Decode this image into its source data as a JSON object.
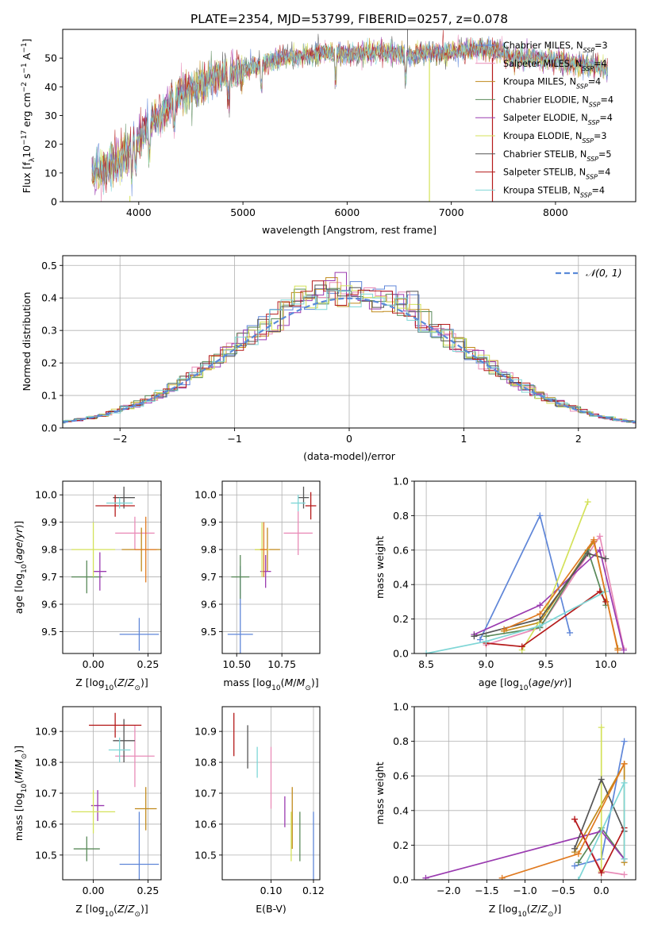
{
  "figure_title": "PLATE=2354, MJD=53799, FIBERID=0257, z=0.078",
  "model_colors": {
    "Chabrier MILES": "#5f86d8",
    "Salpeter MILES": "#e98cb8",
    "Kroupa MILES": "#c08a1c",
    "Chabrier ELODIE": "#5a8a5a",
    "Salpeter ELODIE": "#9a3bb0",
    "Kroupa ELODIE": "#d4e25a",
    "Chabrier STELIB": "#555555",
    "Salpeter STELIB": "#b51a1a",
    "Kroupa STELIB": "#7fd6d6",
    "extra": "#e07a20",
    "gaussian": "#5a8ad8"
  },
  "chart_data": [
    {
      "id": "spectrum",
      "type": "line",
      "title": "PLATE=2354, MJD=53799, FIBERID=0257, z=0.078",
      "xlabel": "wavelength [Angstrom, rest frame]",
      "ylabel_parts": [
        "Flux [f",
        "λ",
        "10",
        "−17",
        " erg cm",
        "−2",
        " s",
        "−1",
        " A",
        "−1",
        "]"
      ],
      "xlim": [
        3270,
        8770
      ],
      "ylim": [
        0,
        60
      ],
      "xticks": [
        4000,
        5000,
        6000,
        7000,
        8000
      ],
      "yticks": [
        0,
        10,
        20,
        30,
        40,
        50
      ],
      "flux_envelope": {
        "x": [
          3550,
          3800,
          4000,
          4200,
          4400,
          4600,
          4800,
          5000,
          5200,
          5400,
          5600,
          5800,
          6000,
          6200,
          6400,
          6600,
          6800,
          7000,
          7200,
          7400,
          7600,
          7800,
          8000,
          8200,
          8400,
          8500
        ],
        "y": [
          10,
          14,
          22,
          30,
          37,
          41,
          44,
          46,
          48,
          50,
          51,
          52,
          51,
          52,
          52,
          51,
          52,
          52,
          53,
          53,
          50,
          50,
          49,
          48,
          47,
          46
        ]
      },
      "legend_entries": [
        {
          "model": "Chabrier MILES",
          "label": "Chabrier MILES, N",
          "sub": "SSP",
          "tail": "=3"
        },
        {
          "model": "Salpeter MILES",
          "label": "Salpeter MILES, N",
          "sub": "SSP",
          "tail": "=4"
        },
        {
          "model": "Kroupa MILES",
          "label": "Kroupa MILES, N",
          "sub": "SSP",
          "tail": "=4"
        },
        {
          "model": "Chabrier ELODIE",
          "label": "Chabrier ELODIE, N",
          "sub": "SSP",
          "tail": "=4"
        },
        {
          "model": "Salpeter ELODIE",
          "label": "Salpeter ELODIE, N",
          "sub": "SSP",
          "tail": "=4"
        },
        {
          "model": "Kroupa ELODIE",
          "label": "Kroupa ELODIE, N",
          "sub": "SSP",
          "tail": "=3"
        },
        {
          "model": "Chabrier STELIB",
          "label": "Chabrier STELIB, N",
          "sub": "SSP",
          "tail": "=5"
        },
        {
          "model": "Salpeter STELIB",
          "label": "Salpeter STELIB, N",
          "sub": "SSP",
          "tail": "=4"
        },
        {
          "model": "Kroupa STELIB",
          "label": "Kroupa STELIB, N",
          "sub": "SSP",
          "tail": "=4"
        }
      ],
      "legend_placement": "right",
      "grid": false
    },
    {
      "id": "residuals",
      "type": "step-histogram",
      "xlabel": "(data-model)/error",
      "ylabel": "Normed distribution",
      "xlim": [
        -2.5,
        2.5
      ],
      "ylim": [
        0,
        0.53
      ],
      "xticks": [
        -2,
        -1,
        0,
        1,
        2
      ],
      "yticks": [
        0.0,
        0.1,
        0.2,
        0.3,
        0.4,
        0.5
      ],
      "bin_width": 0.1,
      "legend_label": "𝒩(0, 1)",
      "legend_placement": "top-right",
      "grid": true
    },
    {
      "id": "age-vs-Z",
      "type": "errorbar",
      "xlabel": "Z [log10(Z/Z⊙)]",
      "ylabel": "age [log10(age/yr)]",
      "xlim": [
        -0.14,
        0.31
      ],
      "ylim": [
        9.42,
        10.05
      ],
      "xticks": [
        0.0,
        0.25
      ],
      "yticks": [
        9.5,
        9.6,
        9.7,
        9.8,
        9.9,
        10.0
      ],
      "grid": true,
      "points": [
        {
          "model": "Chabrier MILES",
          "x": 0.21,
          "y": 9.49,
          "xerr": 0.09,
          "yerr": 0.06
        },
        {
          "model": "Salpeter MILES",
          "x": 0.19,
          "y": 9.86,
          "xerr": 0.09,
          "yerr": 0.06
        },
        {
          "model": "Kroupa MILES",
          "x": 0.22,
          "y": 9.8,
          "xerr": 0.09,
          "yerr": 0.08
        },
        {
          "model": "Chabrier ELODIE",
          "x": -0.03,
          "y": 9.7,
          "xerr": 0.07,
          "yerr": 0.06
        },
        {
          "model": "Salpeter ELODIE",
          "x": 0.03,
          "y": 9.72,
          "xerr": 0.03,
          "yerr": 0.07
        },
        {
          "model": "Kroupa ELODIE",
          "x": 0.0,
          "y": 9.8,
          "xerr": 0.1,
          "yerr": 0.1
        },
        {
          "model": "Chabrier STELIB",
          "x": 0.14,
          "y": 9.99,
          "xerr": 0.05,
          "yerr": 0.04
        },
        {
          "model": "Salpeter STELIB",
          "x": 0.1,
          "y": 9.96,
          "xerr": 0.09,
          "yerr": 0.04
        },
        {
          "model": "Kroupa STELIB",
          "x": 0.12,
          "y": 9.97,
          "xerr": 0.06,
          "yerr": 0.02
        },
        {
          "model": "extra",
          "x": 0.24,
          "y": 9.8,
          "xerr": 0.05,
          "yerr": 0.12
        }
      ]
    },
    {
      "id": "age-vs-mass",
      "type": "errorbar",
      "xlabel": "mass [log10(M/M⊙)]",
      "ylabel": "",
      "xlim": [
        10.42,
        10.96
      ],
      "ylim": [
        9.42,
        10.05
      ],
      "xticks": [
        10.5,
        10.75
      ],
      "yticks": [
        9.5,
        9.6,
        9.7,
        9.8,
        9.9,
        10.0
      ],
      "grid": true,
      "points": [
        {
          "model": "Chabrier MILES",
          "x": 10.52,
          "y": 9.49,
          "xerr": 0.07,
          "yerr": 0.25
        },
        {
          "model": "Salpeter MILES",
          "x": 10.84,
          "y": 9.86,
          "xerr": 0.08,
          "yerr": 0.08
        },
        {
          "model": "Kroupa MILES",
          "x": 10.67,
          "y": 9.8,
          "xerr": 0.07,
          "yerr": 0.08
        },
        {
          "model": "Chabrier ELODIE",
          "x": 10.52,
          "y": 9.7,
          "xerr": 0.05,
          "yerr": 0.08
        },
        {
          "model": "Salpeter ELODIE",
          "x": 10.66,
          "y": 9.72,
          "xerr": 0.03,
          "yerr": 0.06
        },
        {
          "model": "Kroupa ELODIE",
          "x": 10.64,
          "y": 9.8,
          "xerr": 0.04,
          "yerr": 0.1
        },
        {
          "model": "Chabrier STELIB",
          "x": 10.87,
          "y": 9.99,
          "xerr": 0.03,
          "yerr": 0.04
        },
        {
          "model": "Salpeter STELIB",
          "x": 10.91,
          "y": 9.96,
          "xerr": 0.03,
          "yerr": 0.05
        },
        {
          "model": "Kroupa STELIB",
          "x": 10.84,
          "y": 9.97,
          "xerr": 0.04,
          "yerr": 0.03
        },
        {
          "model": "extra",
          "x": 10.65,
          "y": 9.8,
          "xerr": 0.02,
          "yerr": 0.1
        }
      ]
    },
    {
      "id": "mass-weight-vs-age",
      "type": "line",
      "xlabel": "age [log10(age/yr)]",
      "ylabel": "mass weight",
      "xlim": [
        8.4,
        10.25
      ],
      "ylim": [
        0,
        1
      ],
      "xticks": [
        8.5,
        9.0,
        9.5,
        10.0
      ],
      "yticks": [
        0.0,
        0.2,
        0.4,
        0.6,
        0.8,
        1.0
      ],
      "grid": true,
      "series": [
        {
          "model": "Chabrier MILES",
          "x": [
            8.95,
            9.45,
            9.7
          ],
          "y": [
            0.08,
            0.8,
            0.12
          ]
        },
        {
          "model": "Salpeter MILES",
          "x": [
            9.0,
            9.45,
            9.95,
            10.15
          ],
          "y": [
            0.05,
            0.15,
            0.68,
            0.03
          ]
        },
        {
          "model": "Kroupa MILES",
          "x": [
            9.15,
            9.45,
            9.9,
            10.1
          ],
          "y": [
            0.13,
            0.18,
            0.65,
            0.03
          ]
        },
        {
          "model": "Chabrier ELODIE",
          "x": [
            9.0,
            9.45,
            9.85,
            10.0
          ],
          "y": [
            0.1,
            0.15,
            0.6,
            0.28
          ]
        },
        {
          "model": "Salpeter ELODIE",
          "x": [
            8.9,
            9.45,
            9.95,
            10.15
          ],
          "y": [
            0.11,
            0.28,
            0.6,
            0.02
          ]
        },
        {
          "model": "Kroupa ELODIE",
          "x": [
            9.3,
            9.5,
            9.85
          ],
          "y": [
            0.02,
            0.25,
            0.88
          ]
        },
        {
          "model": "Chabrier STELIB",
          "x": [
            8.9,
            9.45,
            9.85,
            10.0
          ],
          "y": [
            0.1,
            0.2,
            0.58,
            0.55
          ]
        },
        {
          "model": "Salpeter STELIB",
          "x": [
            9.0,
            9.3,
            9.95,
            10.0
          ],
          "y": [
            0.06,
            0.04,
            0.36,
            0.3
          ]
        },
        {
          "model": "Kroupa STELIB",
          "x": [
            8.5,
            9.0,
            9.45,
            10.0
          ],
          "y": [
            0.0,
            0.07,
            0.16,
            0.36
          ]
        },
        {
          "model": "extra",
          "x": [
            9.15,
            9.45,
            9.9,
            10.1
          ],
          "y": [
            0.14,
            0.23,
            0.66,
            0.02
          ]
        }
      ]
    },
    {
      "id": "mass-vs-Z",
      "type": "errorbar",
      "xlabel": "Z [log10(Z/Z⊙)]",
      "ylabel": "mass [log10(M/M⊙)]",
      "xlim": [
        -0.14,
        0.31
      ],
      "ylim": [
        10.42,
        10.98
      ],
      "xticks": [
        0.0,
        0.25
      ],
      "yticks": [
        10.5,
        10.6,
        10.7,
        10.8,
        10.9
      ],
      "grid": true,
      "points": [
        {
          "model": "Chabrier MILES",
          "x": 0.21,
          "y": 10.47,
          "xerr": 0.09,
          "yerr": 0.17
        },
        {
          "model": "Salpeter MILES",
          "x": 0.19,
          "y": 10.82,
          "xerr": 0.09,
          "yerr": 0.1
        },
        {
          "model": "Kroupa MILES",
          "x": 0.24,
          "y": 10.65,
          "xerr": 0.05,
          "yerr": 0.07
        },
        {
          "model": "Chabrier ELODIE",
          "x": -0.03,
          "y": 10.52,
          "xerr": 0.06,
          "yerr": 0.04
        },
        {
          "model": "Salpeter ELODIE",
          "x": 0.02,
          "y": 10.66,
          "xerr": 0.03,
          "yerr": 0.05
        },
        {
          "model": "Kroupa ELODIE",
          "x": 0.0,
          "y": 10.64,
          "xerr": 0.1,
          "yerr": 0.07
        },
        {
          "model": "Chabrier STELIB",
          "x": 0.14,
          "y": 10.87,
          "xerr": 0.05,
          "yerr": 0.07
        },
        {
          "model": "Salpeter STELIB",
          "x": 0.1,
          "y": 10.92,
          "xerr": 0.12,
          "yerr": 0.04
        },
        {
          "model": "Kroupa STELIB",
          "x": 0.12,
          "y": 10.84,
          "xerr": 0.05,
          "yerr": 0.04
        }
      ]
    },
    {
      "id": "mass-vs-ebv",
      "type": "errorbar",
      "xlabel": "E(B-V)",
      "ylabel": "",
      "xlim": [
        0.077,
        0.123
      ],
      "ylim": [
        10.42,
        10.98
      ],
      "xticks": [
        0.1,
        0.12
      ],
      "yticks": [
        10.5,
        10.6,
        10.7,
        10.8,
        10.9
      ],
      "grid": true,
      "points": [
        {
          "model": "Chabrier MILES",
          "x": 0.12,
          "y": 10.52,
          "xerr": 0,
          "yerr": 0.12
        },
        {
          "model": "Salpeter MILES",
          "x": 0.1,
          "y": 10.75,
          "xerr": 0,
          "yerr": 0.1
        },
        {
          "model": "Kroupa MILES",
          "x": 0.11,
          "y": 10.62,
          "xerr": 0,
          "yerr": 0.1
        },
        {
          "model": "Chabrier ELODIE",
          "x": 0.1136,
          "y": 10.56,
          "xerr": 0,
          "yerr": 0.08
        },
        {
          "model": "Salpeter ELODIE",
          "x": 0.1065,
          "y": 10.64,
          "xerr": 0,
          "yerr": 0.05
        },
        {
          "model": "Kroupa ELODIE",
          "x": 0.1095,
          "y": 10.56,
          "xerr": 0,
          "yerr": 0.08
        },
        {
          "model": "Chabrier STELIB",
          "x": 0.089,
          "y": 10.85,
          "xerr": 0,
          "yerr": 0.07
        },
        {
          "model": "Salpeter STELIB",
          "x": 0.0825,
          "y": 10.89,
          "xerr": 0,
          "yerr": 0.07
        },
        {
          "model": "Kroupa STELIB",
          "x": 0.0935,
          "y": 10.8,
          "xerr": 0,
          "yerr": 0.05
        }
      ]
    },
    {
      "id": "mass-weight-vs-Z",
      "type": "line",
      "xlabel": "Z [log10(Z/Z⊙)]",
      "ylabel": "mass weight",
      "xlim": [
        -2.45,
        0.45
      ],
      "ylim": [
        0,
        1
      ],
      "xticks": [
        -2.0,
        -1.5,
        -1.0,
        -0.5,
        0.0
      ],
      "yticks": [
        0.0,
        0.2,
        0.4,
        0.6,
        0.8,
        1.0
      ],
      "grid": true,
      "series": [
        {
          "model": "Chabrier MILES",
          "x": [
            -0.35,
            0.0,
            0.3
          ],
          "y": [
            0.08,
            0.12,
            0.8
          ]
        },
        {
          "model": "Salpeter MILES",
          "x": [
            -0.35,
            0.0,
            0.3
          ],
          "y": [
            0.35,
            0.05,
            0.03
          ]
        },
        {
          "model": "Kroupa MILES",
          "x": [
            -0.35,
            0.3,
            0.3
          ],
          "y": [
            0.16,
            0.67,
            0.1
          ]
        },
        {
          "model": "Chabrier ELODIE",
          "x": [
            -0.3,
            0.0,
            0.3
          ],
          "y": [
            0.1,
            0.3,
            0.12
          ]
        },
        {
          "model": "Salpeter ELODIE",
          "x": [
            -2.3,
            0.0,
            0.3
          ],
          "y": [
            0.01,
            0.28,
            0.12
          ]
        },
        {
          "model": "Kroupa ELODIE",
          "x": [
            0.0,
            0.0
          ],
          "y": [
            0.05,
            0.88
          ]
        },
        {
          "model": "Chabrier STELIB",
          "x": [
            -0.35,
            0.0,
            0.3
          ],
          "y": [
            0.18,
            0.58,
            0.28
          ]
        },
        {
          "model": "Salpeter STELIB",
          "x": [
            -0.35,
            0.0,
            0.3
          ],
          "y": [
            0.35,
            0.04,
            0.3
          ]
        },
        {
          "model": "Kroupa STELIB",
          "x": [
            -0.3,
            0.3,
            0.3
          ],
          "y": [
            0.0,
            0.56,
            0.12
          ]
        },
        {
          "model": "extra",
          "x": [
            -1.3,
            -0.3,
            0.3
          ],
          "y": [
            0.01,
            0.15,
            0.67
          ]
        }
      ]
    }
  ]
}
